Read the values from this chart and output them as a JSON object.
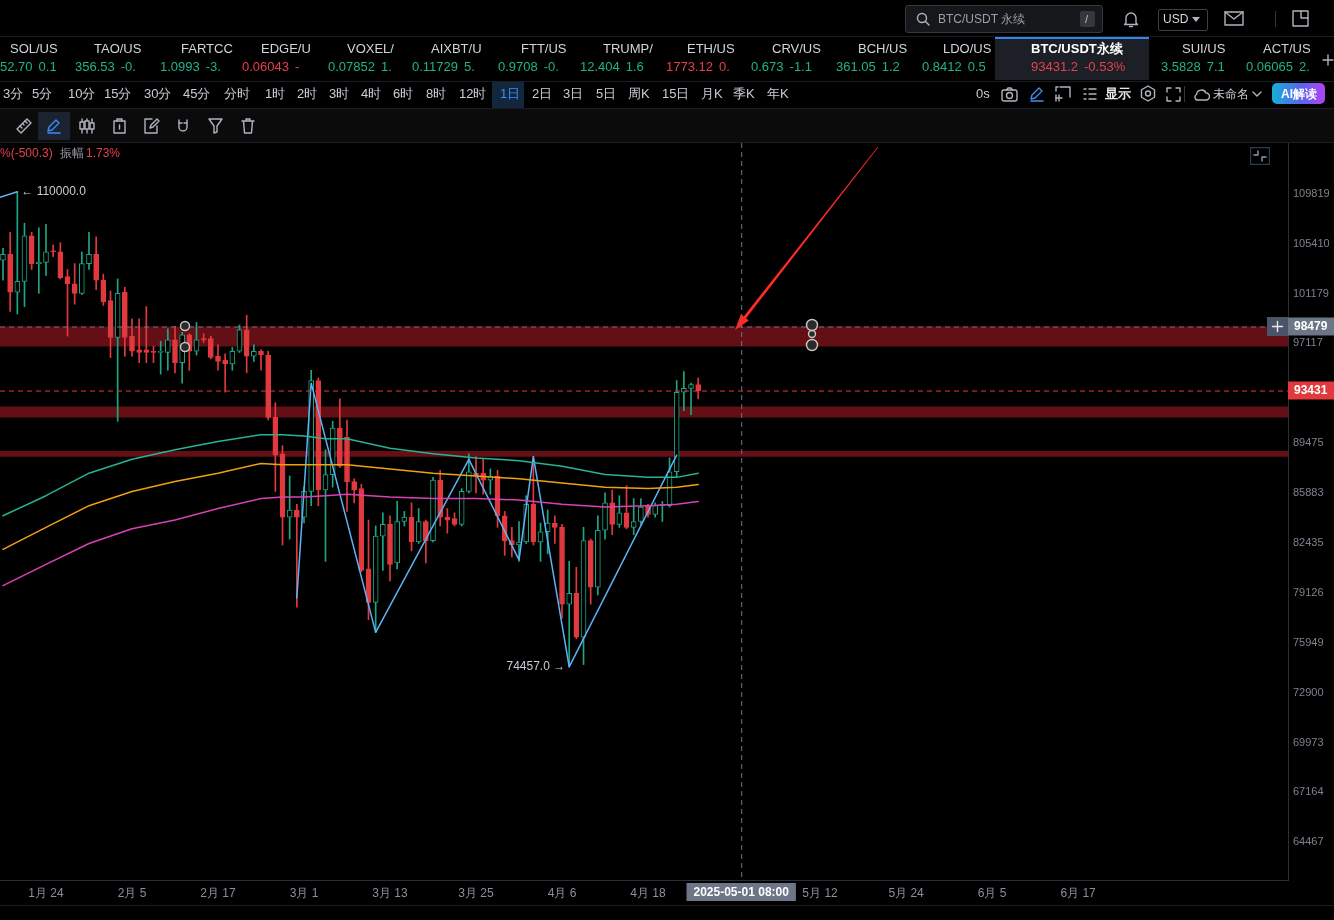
{
  "chart_data": {
    "type": "candlestick",
    "x": [
      "2025-01-18",
      "2025-01-19",
      "2025-01-20",
      "2025-01-21",
      "2025-01-22",
      "2025-01-23",
      "2025-01-24",
      "2025-01-25",
      "2025-01-26",
      "2025-01-27",
      "2025-01-28",
      "2025-01-29",
      "2025-01-30",
      "2025-01-31",
      "2025-02-01",
      "2025-02-02",
      "2025-02-03",
      "2025-02-04",
      "2025-02-05",
      "2025-02-06",
      "2025-02-07",
      "2025-02-08",
      "2025-02-09",
      "2025-02-10",
      "2025-02-11",
      "2025-02-12",
      "2025-02-13",
      "2025-02-14",
      "2025-02-15",
      "2025-02-16",
      "2025-02-17",
      "2025-02-18",
      "2025-02-19",
      "2025-02-20",
      "2025-02-21",
      "2025-02-22",
      "2025-02-23",
      "2025-02-24",
      "2025-02-25",
      "2025-02-26",
      "2025-02-27",
      "2025-02-28",
      "2025-03-01",
      "2025-03-02",
      "2025-03-03",
      "2025-03-04",
      "2025-03-05",
      "2025-03-06",
      "2025-03-07",
      "2025-03-08",
      "2025-03-09",
      "2025-03-10",
      "2025-03-11",
      "2025-03-12",
      "2025-03-13",
      "2025-03-14",
      "2025-03-15",
      "2025-03-16",
      "2025-03-17",
      "2025-03-18",
      "2025-03-19",
      "2025-03-20",
      "2025-03-21",
      "2025-03-22",
      "2025-03-23",
      "2025-03-24",
      "2025-03-25",
      "2025-03-26",
      "2025-03-27",
      "2025-03-28",
      "2025-03-29",
      "2025-03-30",
      "2025-03-31",
      "2025-04-01",
      "2025-04-02",
      "2025-04-03",
      "2025-04-04",
      "2025-04-05",
      "2025-04-06",
      "2025-04-07",
      "2025-04-08",
      "2025-04-09",
      "2025-04-10",
      "2025-04-11",
      "2025-04-12",
      "2025-04-13",
      "2025-04-14",
      "2025-04-15",
      "2025-04-16",
      "2025-04-17",
      "2025-04-18",
      "2025-04-19",
      "2025-04-20",
      "2025-04-21",
      "2025-04-22",
      "2025-04-23",
      "2025-04-24",
      "2025-04-25"
    ],
    "ohlc": [
      [
        104000,
        105000,
        102300,
        104500
      ],
      [
        104500,
        106400,
        99700,
        101300
      ],
      [
        101300,
        110000,
        99500,
        102200
      ],
      [
        102200,
        107200,
        100100,
        106100
      ],
      [
        106100,
        106400,
        103200,
        103700
      ],
      [
        103700,
        106800,
        101200,
        103800
      ],
      [
        103800,
        107100,
        102700,
        104700
      ],
      [
        104800,
        105300,
        104300,
        104700
      ],
      [
        104700,
        105500,
        102400,
        102500
      ],
      [
        102600,
        103200,
        97700,
        102000
      ],
      [
        102000,
        103700,
        100300,
        101200
      ],
      [
        101200,
        104700,
        101100,
        103700
      ],
      [
        103700,
        106400,
        103200,
        104500
      ],
      [
        104500,
        106000,
        101500,
        102300
      ],
      [
        102300,
        102800,
        100200,
        100500
      ],
      [
        100600,
        101400,
        96000,
        97600
      ],
      [
        97600,
        102400,
        91100,
        101200
      ],
      [
        101300,
        101700,
        96100,
        97600
      ],
      [
        97700,
        99100,
        96100,
        96500
      ],
      [
        96600,
        99100,
        95600,
        96400
      ],
      [
        96600,
        100100,
        95600,
        96400
      ],
      [
        96500,
        96900,
        95600,
        96400
      ],
      [
        96400,
        97300,
        94700,
        96500
      ],
      [
        96400,
        98300,
        95000,
        97400
      ],
      [
        97400,
        98500,
        94800,
        95600
      ],
      [
        95600,
        98000,
        94000,
        97800
      ],
      [
        97800,
        97900,
        95000,
        96500
      ],
      [
        96500,
        98800,
        96200,
        97400
      ],
      [
        97500,
        97900,
        97200,
        97400
      ],
      [
        97500,
        97700,
        95900,
        96000
      ],
      [
        96100,
        97000,
        95000,
        95700
      ],
      [
        95800,
        96300,
        93300,
        95500
      ],
      [
        95500,
        96800,
        95000,
        96500
      ],
      [
        96500,
        98600,
        96400,
        98200
      ],
      [
        98200,
        99400,
        94800,
        96100
      ],
      [
        96100,
        97000,
        95700,
        96500
      ],
      [
        96500,
        96600,
        95000,
        96200
      ],
      [
        96200,
        96500,
        91200,
        91400
      ],
      [
        91400,
        92500,
        86000,
        88600
      ],
      [
        88700,
        89300,
        82300,
        84200
      ],
      [
        84200,
        87100,
        82700,
        84700
      ],
      [
        84700,
        85100,
        78200,
        84200
      ],
      [
        84200,
        86300,
        83800,
        86000
      ],
      [
        86000,
        95000,
        85000,
        94200
      ],
      [
        94200,
        94400,
        85000,
        86100
      ],
      [
        86100,
        89000,
        81200,
        87200
      ],
      [
        87200,
        91100,
        86300,
        90600
      ],
      [
        90600,
        92800,
        87700,
        87800
      ],
      [
        89900,
        91200,
        84600,
        86700
      ],
      [
        86700,
        86900,
        85200,
        86100
      ],
      [
        86200,
        86500,
        80500,
        80600
      ],
      [
        80700,
        84000,
        77400,
        78500
      ],
      [
        78500,
        83600,
        76600,
        82900
      ],
      [
        82900,
        84500,
        80600,
        83700
      ],
      [
        83700,
        84300,
        79900,
        81000
      ],
      [
        81100,
        85300,
        80700,
        83900
      ],
      [
        83900,
        84600,
        83600,
        84200
      ],
      [
        84200,
        85200,
        81900,
        82500
      ],
      [
        82500,
        84800,
        82400,
        83900
      ],
      [
        83900,
        84000,
        81100,
        82600
      ],
      [
        82600,
        87000,
        82500,
        86800
      ],
      [
        86800,
        87500,
        83600,
        84200
      ],
      [
        84200,
        84800,
        83100,
        84000
      ],
      [
        84100,
        84500,
        83600,
        83700
      ],
      [
        83700,
        86200,
        83600,
        86000
      ],
      [
        86000,
        88700,
        85900,
        87400
      ],
      [
        87300,
        88500,
        85900,
        87100
      ],
      [
        87300,
        88300,
        85800,
        86800
      ],
      [
        86800,
        87600,
        85800,
        87100
      ],
      [
        87100,
        87500,
        83500,
        84300
      ],
      [
        84300,
        84600,
        81600,
        82600
      ],
      [
        82600,
        83500,
        81500,
        82300
      ],
      [
        82300,
        83900,
        81200,
        82500
      ],
      [
        82500,
        85700,
        82400,
        85100
      ],
      [
        85100,
        88500,
        82300,
        82500
      ],
      [
        82500,
        83800,
        81200,
        83200
      ],
      [
        83200,
        84700,
        81700,
        83800
      ],
      [
        83800,
        84300,
        82400,
        83500
      ],
      [
        83500,
        83700,
        77500,
        78400
      ],
      [
        78400,
        81200,
        74457,
        79100
      ],
      [
        79100,
        80800,
        76200,
        76300
      ],
      [
        76300,
        83500,
        74600,
        82600
      ],
      [
        82600,
        82700,
        78400,
        79500
      ],
      [
        79500,
        84300,
        79000,
        83300
      ],
      [
        83300,
        85900,
        82700,
        85200
      ],
      [
        85200,
        86100,
        83000,
        83700
      ],
      [
        83700,
        85700,
        83500,
        84500
      ],
      [
        84500,
        86400,
        83400,
        83500
      ],
      [
        83500,
        85500,
        83000,
        83900
      ],
      [
        83900,
        85500,
        83700,
        84900
      ],
      [
        85000,
        85100,
        84200,
        84400
      ],
      [
        84400,
        85200,
        84200,
        85000
      ],
      [
        85000,
        85300,
        83900,
        85100
      ],
      [
        85000,
        88400,
        84900,
        87400
      ],
      [
        87400,
        94200,
        87000,
        93300
      ],
      [
        93300,
        94900,
        91900,
        93600
      ],
      [
        93600,
        94000,
        91600,
        93900
      ],
      [
        93900,
        94400,
        92800,
        93431.2
      ]
    ],
    "series": [
      {
        "type": "line",
        "color": "#27b394",
        "x": [
          "2025-01-18",
          "2025-01-24",
          "2025-01-30",
          "2025-02-05",
          "2025-02-11",
          "2025-02-17",
          "2025-02-23",
          "2025-02-26",
          "2025-03-01",
          "2025-03-04",
          "2025-03-07",
          "2025-03-13",
          "2025-03-19",
          "2025-03-25",
          "2025-03-31",
          "2025-04-06",
          "2025-04-12",
          "2025-04-18",
          "2025-04-22",
          "2025-04-25"
        ],
        "values": [
          84300,
          85700,
          87300,
          88300,
          89000,
          89600,
          90100,
          90100,
          90000,
          89800,
          89800,
          89100,
          88700,
          88400,
          88200,
          87800,
          87200,
          87000,
          87000,
          87300
        ]
      },
      {
        "type": "line",
        "color": "#f0a010",
        "x": [
          "2025-01-18",
          "2025-01-24",
          "2025-01-30",
          "2025-02-05",
          "2025-02-11",
          "2025-02-17",
          "2025-02-23",
          "2025-02-26",
          "2025-03-01",
          "2025-03-04",
          "2025-03-07",
          "2025-03-13",
          "2025-03-19",
          "2025-03-25",
          "2025-03-31",
          "2025-04-06",
          "2025-04-12",
          "2025-04-18",
          "2025-04-22",
          "2025-04-25"
        ],
        "values": [
          82000,
          83500,
          85000,
          86000,
          86700,
          87300,
          88000,
          87900,
          87900,
          87900,
          87900,
          87600,
          87300,
          87100,
          86900,
          86600,
          86300,
          86200,
          86300,
          86500
        ]
      },
      {
        "type": "line",
        "color": "#d842b4",
        "x": [
          "2025-01-18",
          "2025-01-24",
          "2025-01-30",
          "2025-02-05",
          "2025-02-11",
          "2025-02-17",
          "2025-02-23",
          "2025-02-26",
          "2025-03-01",
          "2025-03-04",
          "2025-03-07",
          "2025-03-13",
          "2025-03-19",
          "2025-03-25",
          "2025-03-31",
          "2025-04-06",
          "2025-04-12",
          "2025-04-18",
          "2025-04-22",
          "2025-04-25"
        ],
        "values": [
          79600,
          81000,
          82400,
          83400,
          84000,
          84800,
          85500,
          85600,
          85600,
          85700,
          85800,
          85600,
          85500,
          85500,
          85400,
          85100,
          84900,
          85000,
          85100,
          85300
        ]
      },
      {
        "type": "line",
        "color": "#5cb3f7",
        "x": [
          "2025-01-17T14:00",
          "2025-01-20"
        ],
        "values": [
          109500,
          110000
        ]
      },
      {
        "type": "line",
        "color": "#5cb3f7",
        "x": [
          "2025-02-28",
          "2025-03-02",
          "2025-03-11",
          "2025-03-24",
          "2025-03-31",
          "2025-04-02",
          "2025-04-07",
          "2025-04-22"
        ],
        "values": [
          78800,
          94000,
          76600,
          88300,
          81300,
          88500,
          74457,
          88600
        ]
      }
    ],
    "xlim": [
      "2025-01-17T14:00",
      "2025-07-16T07:00"
    ],
    "xticks": [
      {
        "value": "2025-01-24",
        "label": "1月 24"
      },
      {
        "value": "2025-02-05",
        "label": "2月 5"
      },
      {
        "value": "2025-02-17",
        "label": "2月 17"
      },
      {
        "value": "2025-03-01",
        "label": "3月 1"
      },
      {
        "value": "2025-03-13",
        "label": "3月 13"
      },
      {
        "value": "2025-03-25",
        "label": "3月 25"
      },
      {
        "value": "2025-04-06",
        "label": "4月 6"
      },
      {
        "value": "2025-04-18",
        "label": "4月 18"
      },
      {
        "value": "2025-05-12",
        "label": "5月 12"
      },
      {
        "value": "2025-05-24",
        "label": "5月 24"
      },
      {
        "value": "2025-06-05",
        "label": "6月 5"
      },
      {
        "value": "2025-06-17",
        "label": "6月 17"
      }
    ],
    "ylim": [
      62500,
      114500
    ],
    "yticks": [
      109819,
      105410,
      101179,
      97117,
      89475,
      85883,
      82435,
      79126,
      75949,
      72900,
      69973,
      67164,
      64467
    ],
    "log": true,
    "grid": false,
    "bands": [
      {
        "axis": "y",
        "from": 96880,
        "to": 98479,
        "color": "#640e15"
      },
      {
        "axis": "y",
        "from": 91380,
        "to": 92210,
        "color": "#640e15"
      },
      {
        "axis": "y",
        "from": 88480,
        "to": 88910,
        "color": "#640e15"
      }
    ],
    "ref_lines": [
      {
        "axis": "y",
        "value": 93431.2,
        "label": "93431",
        "color": "#e0393e",
        "line_style": "dashed"
      },
      {
        "axis": "y",
        "value": 98479,
        "label": "98479",
        "color": "#6c7686",
        "line_style": "dashed"
      },
      {
        "axis": "x",
        "value": "2025-05-01",
        "label": "2025-05-01 08:00",
        "color": "#6c7686",
        "line_style": "dashed"
      }
    ],
    "annotations": [
      {
        "text": "← 110000.0",
        "x": "2025-01-20",
        "y": 110000
      },
      {
        "text": "74457.0 →",
        "x": "2025-04-07",
        "y": 74457
      },
      "BTC/USDT 永续",
      "/",
      "USD",
      "SOL/US",
      "52.70",
      "0.1",
      "TAO/US",
      "356.53",
      "-0.",
      "FARTCC",
      "1.0993",
      "-3.",
      "EDGE/U",
      "0.06043",
      "-",
      "VOXEL/",
      "0.07852",
      "1.",
      "AIXBT/U",
      "0.11729",
      "5.",
      "FTT/US",
      "0.9708",
      "-0.",
      "TRUMP/",
      "12.404",
      "1.6",
      "ETH/US",
      "1773.12",
      "0.",
      "CRV/US",
      "0.673",
      "-1.1",
      "BCH/US",
      "361.05",
      "1.2",
      "LDO/US",
      "0.8412",
      "0.5",
      "BTC/USDT永续",
      "93431.2",
      "-0.53%",
      "SUI/US",
      "3.5828",
      "7.1",
      "ACT/US",
      "0.06065",
      "2.",
      "3分",
      "5分",
      "10分",
      "15分",
      "30分",
      "45分",
      "分时",
      "1时",
      "2时",
      "3时",
      "4时",
      "6时",
      "8时",
      "12时",
      "1日",
      "2日",
      "3日",
      "5日",
      "周K",
      "15日",
      "月K",
      "季K",
      "年K",
      "0s",
      "显示",
      "未命名",
      "AI解读",
      "%(-500.3)",
      "振幅",
      "1.73%"
    ]
  }
}
